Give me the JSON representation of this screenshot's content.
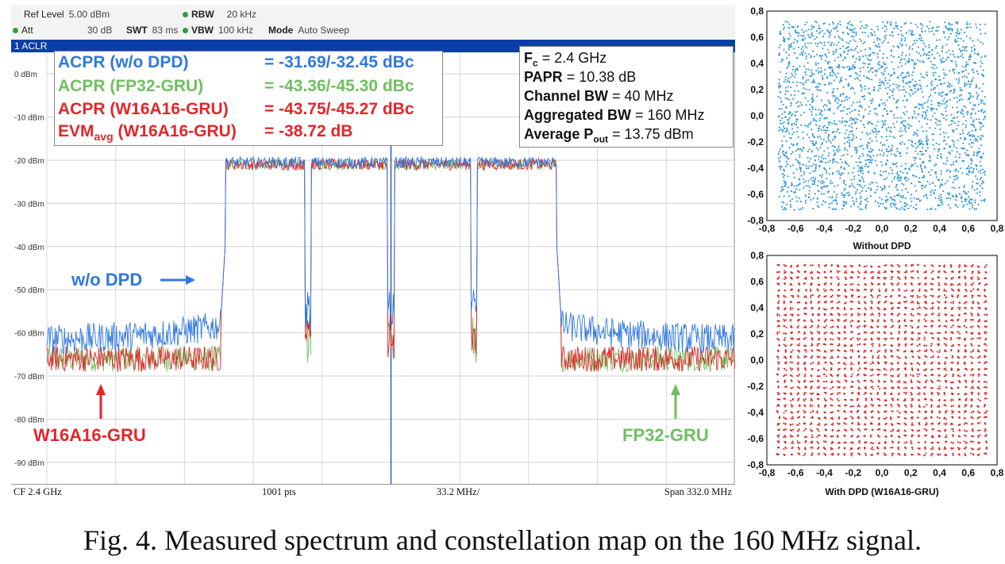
{
  "analyzer": {
    "header": {
      "ref_level_label": "Ref Level",
      "ref_level_value": "5.00 dBm",
      "att_label": "Att",
      "att_value": "30 dB",
      "swt_label": "SWT",
      "swt_value": "83 ms",
      "rbw_label": "RBW",
      "rbw_value": "20 kHz",
      "vbw_label": "VBW",
      "vbw_value": "100 kHz",
      "mode_label": "Mode",
      "mode_value": "Auto Sweep"
    },
    "trace_bar": "1 ACLR",
    "footer": {
      "cf": "CF 2.4 GHz",
      "pts": "1001 pts",
      "div": "33.2 MHz/",
      "span": "Span 332.0 MHz"
    }
  },
  "acpr_box": {
    "rows": [
      {
        "label": "ACPR (w/o DPD)",
        "value": "= -31.69/-32.45 dBc",
        "color": "#2f78e0"
      },
      {
        "label": "ACPR (FP32-GRU)",
        "value": "= -43.36/-45.30 dBc",
        "color": "#6fbf60"
      },
      {
        "label": "ACPR (W16A16-GRU)",
        "value": "= -43.75/-45.27 dBc",
        "color": "#e3262a"
      }
    ],
    "evm": {
      "prefix": "EVM",
      "sub": "avg",
      "suffix": " (W16A16-GRU)",
      "value": "= -38.72 dB",
      "color": "#e3262a"
    }
  },
  "info_box": {
    "fc": {
      "label": "F",
      "sub": "c",
      "value": " = 2.4 GHz"
    },
    "papr": {
      "label": "PAPR",
      "value": " = 10.38 dB"
    },
    "channel_bw": {
      "label": "Channel BW",
      "value": " = 40 MHz"
    },
    "aggregated_bw": {
      "label": "Aggregated BW",
      "value": " = 160 MHz"
    },
    "pout": {
      "label": "Average P",
      "sub": "out",
      "value": " = 13.75 dBm"
    }
  },
  "annotations": {
    "wo_dpd": "w/o DPD",
    "w16a16": "W16A16-GRU",
    "fp32": "FP32-GRU"
  },
  "caption": "Fig. 4.   Measured spectrum and constellation map on the 160 MHz signal.",
  "colors": {
    "wo_dpd": "#2f78e0",
    "fp32": "#6fbf60",
    "w16a16": "#e3262a",
    "const_wo": "#3a9ad9",
    "const_w16": "#e02020"
  },
  "chart_data": [
    {
      "type": "line",
      "xlabel": "",
      "ylabel": "",
      "ylim": [
        -95,
        5
      ],
      "y_ticks": [
        "0 dBm",
        "-10 dBm",
        "-20 dBm",
        "-30 dBm",
        "-40 dBm",
        "-50 dBm",
        "-60 dBm",
        "-70 dBm",
        "-80 dBm",
        "-90 dBm"
      ],
      "x_unit": "MHz offset from CF",
      "xlim": [
        -166,
        166
      ],
      "grid": true,
      "series": [
        {
          "name": "w/o DPD",
          "out_of_band_level_dbm": -60,
          "in_band_level_dbm": -20.5
        },
        {
          "name": "FP32-GRU",
          "out_of_band_level_dbm": -66,
          "in_band_level_dbm": -21
        },
        {
          "name": "W16A16-GRU",
          "out_of_band_level_dbm": -66,
          "in_band_level_dbm": -21
        }
      ],
      "channels_mhz": [
        [
          -80,
          -40
        ],
        [
          -40,
          0
        ],
        [
          0,
          40
        ],
        [
          40,
          80
        ]
      ]
    },
    {
      "type": "scatter",
      "title": "",
      "xlabel": "Without DPD",
      "xlim": [
        -0.8,
        0.8
      ],
      "ylim": [
        -0.8,
        0.8
      ],
      "ticks": [
        "-0,8",
        "-0,6",
        "-0,4",
        "-0,2",
        "0,0",
        "0,2",
        "0,4",
        "0,6",
        "0,8"
      ],
      "series": [
        {
          "distribution": "uniform",
          "range": [
            -0.72,
            0.72
          ]
        }
      ]
    },
    {
      "type": "scatter",
      "title": "",
      "xlabel": "With DPD (W16A16-GRU)",
      "xlim": [
        -0.8,
        0.8
      ],
      "ylim": [
        -0.8,
        0.8
      ],
      "ticks": [
        "-0,8",
        "-0,6",
        "-0,4",
        "-0,2",
        "0,0",
        "0,2",
        "0,4",
        "0,6",
        "0,8"
      ],
      "series": [
        {
          "distribution": "grid",
          "grid_n": 32,
          "range": [
            -0.72,
            0.72
          ]
        }
      ]
    }
  ]
}
